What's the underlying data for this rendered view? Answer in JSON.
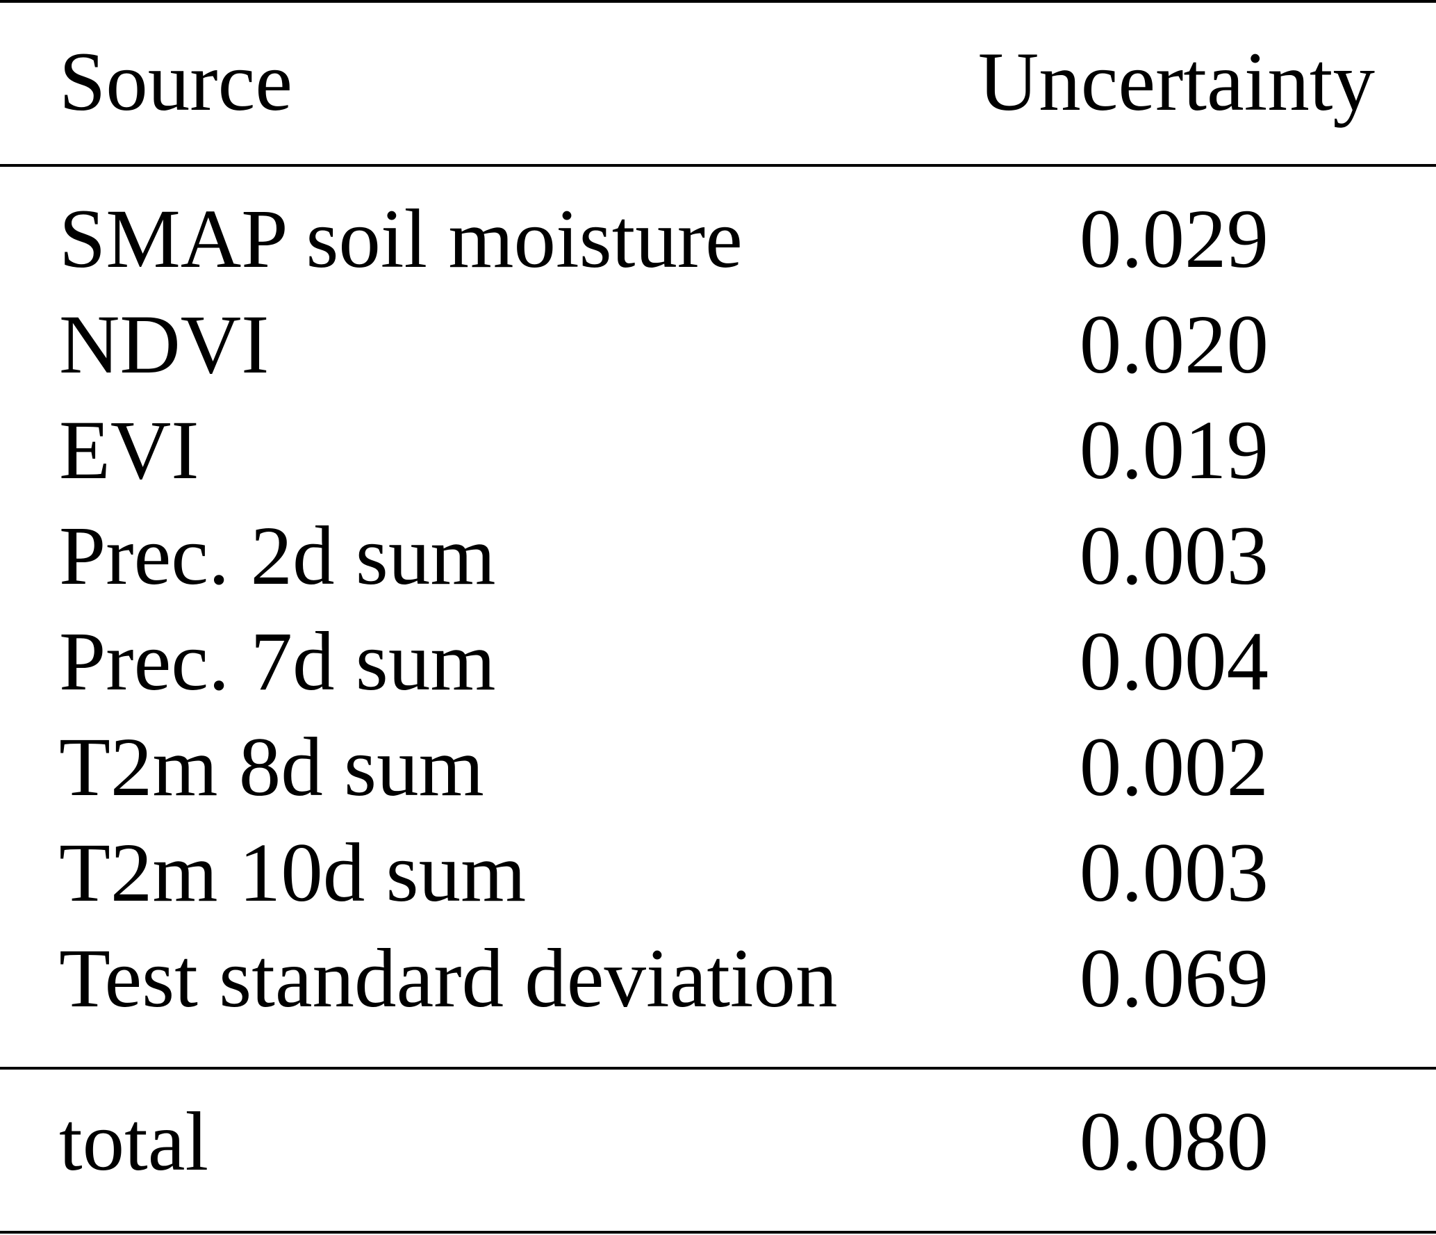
{
  "table": {
    "header": {
      "source": "Source",
      "uncertainty": "Uncertainty"
    },
    "rows": [
      {
        "source": "SMAP soil moisture",
        "uncertainty": "0.029"
      },
      {
        "source": "NDVI",
        "uncertainty": "0.020"
      },
      {
        "source": "EVI",
        "uncertainty": "0.019"
      },
      {
        "source": "Prec. 2d sum",
        "uncertainty": "0.003"
      },
      {
        "source": "Prec. 7d sum",
        "uncertainty": "0.004"
      },
      {
        "source": "T2m 8d sum",
        "uncertainty": "0.002"
      },
      {
        "source": "T2m 10d sum",
        "uncertainty": "0.003"
      },
      {
        "source": "Test standard deviation",
        "uncertainty": "0.069"
      }
    ],
    "footer": {
      "source": "total",
      "uncertainty": "0.080"
    }
  }
}
